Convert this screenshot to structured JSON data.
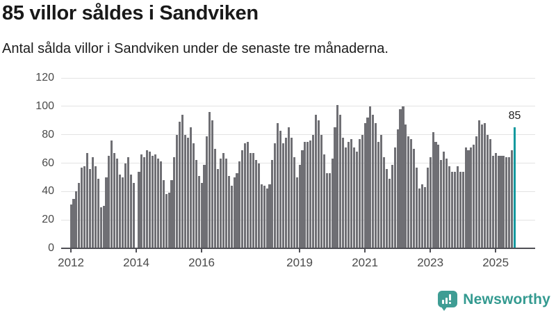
{
  "header": {
    "title": "85 villor såldes i Sandviken",
    "subtitle": "Antal sålda villor i Sandviken under de senaste tre månaderna."
  },
  "chart_data": {
    "type": "bar",
    "title": "85 villor såldes i Sandviken",
    "subtitle": "Antal sålda villor i Sandviken under de senaste tre månaderna.",
    "xlabel": "",
    "ylabel": "",
    "ylim": [
      0,
      120
    ],
    "grid": true,
    "legend": "none",
    "y_ticks": [
      0,
      20,
      40,
      60,
      80,
      100,
      120
    ],
    "x_tick_labels": [
      "2012",
      "2014",
      "2016",
      "2019",
      "2021",
      "2023",
      "2025"
    ],
    "x_tick_indices": [
      0,
      24,
      48,
      84,
      108,
      132,
      156
    ],
    "values": [
      31,
      35,
      40,
      46,
      57,
      58,
      67,
      56,
      64,
      58,
      49,
      29,
      30,
      50,
      65,
      76,
      67,
      63,
      52,
      50,
      60,
      64,
      52,
      46,
      0,
      54,
      66,
      64,
      69,
      68,
      65,
      66,
      63,
      61,
      48,
      38,
      39,
      48,
      64,
      80,
      89,
      94,
      80,
      78,
      85,
      74,
      62,
      51,
      46,
      59,
      79,
      96,
      90,
      70,
      56,
      63,
      67,
      63,
      51,
      44,
      50,
      53,
      61,
      69,
      74,
      75,
      67,
      67,
      62,
      60,
      45,
      44,
      42,
      45,
      62,
      74,
      88,
      83,
      74,
      78,
      85,
      78,
      64,
      50,
      59,
      69,
      75,
      75,
      76,
      80,
      94,
      90,
      80,
      66,
      53,
      53,
      63,
      85,
      101,
      94,
      78,
      71,
      75,
      77,
      71,
      68,
      77,
      80,
      88,
      92,
      100,
      94,
      88,
      75,
      80,
      64,
      56,
      49,
      59,
      71,
      84,
      98,
      100,
      87,
      79,
      77,
      70,
      57,
      42,
      45,
      43,
      57,
      64,
      82,
      75,
      73,
      62,
      68,
      63,
      58,
      54,
      54,
      58,
      54,
      54,
      71,
      69,
      71,
      73,
      79,
      90,
      87,
      88,
      80,
      77,
      65,
      67,
      65,
      65,
      65,
      64,
      64,
      69,
      85
    ],
    "highlight_index": 163,
    "highlight_value": 85,
    "highlight_label": "85",
    "bar_color": "#6f6f74",
    "highlight_color": "#12999e",
    "grid_color": "#e3e3e3",
    "axis_color": "#4f4f55"
  },
  "footer": {
    "brand": "Newsworthy",
    "brand_color": "#339a90",
    "logo_icon": "bar-chart-speech-bubble-icon"
  }
}
